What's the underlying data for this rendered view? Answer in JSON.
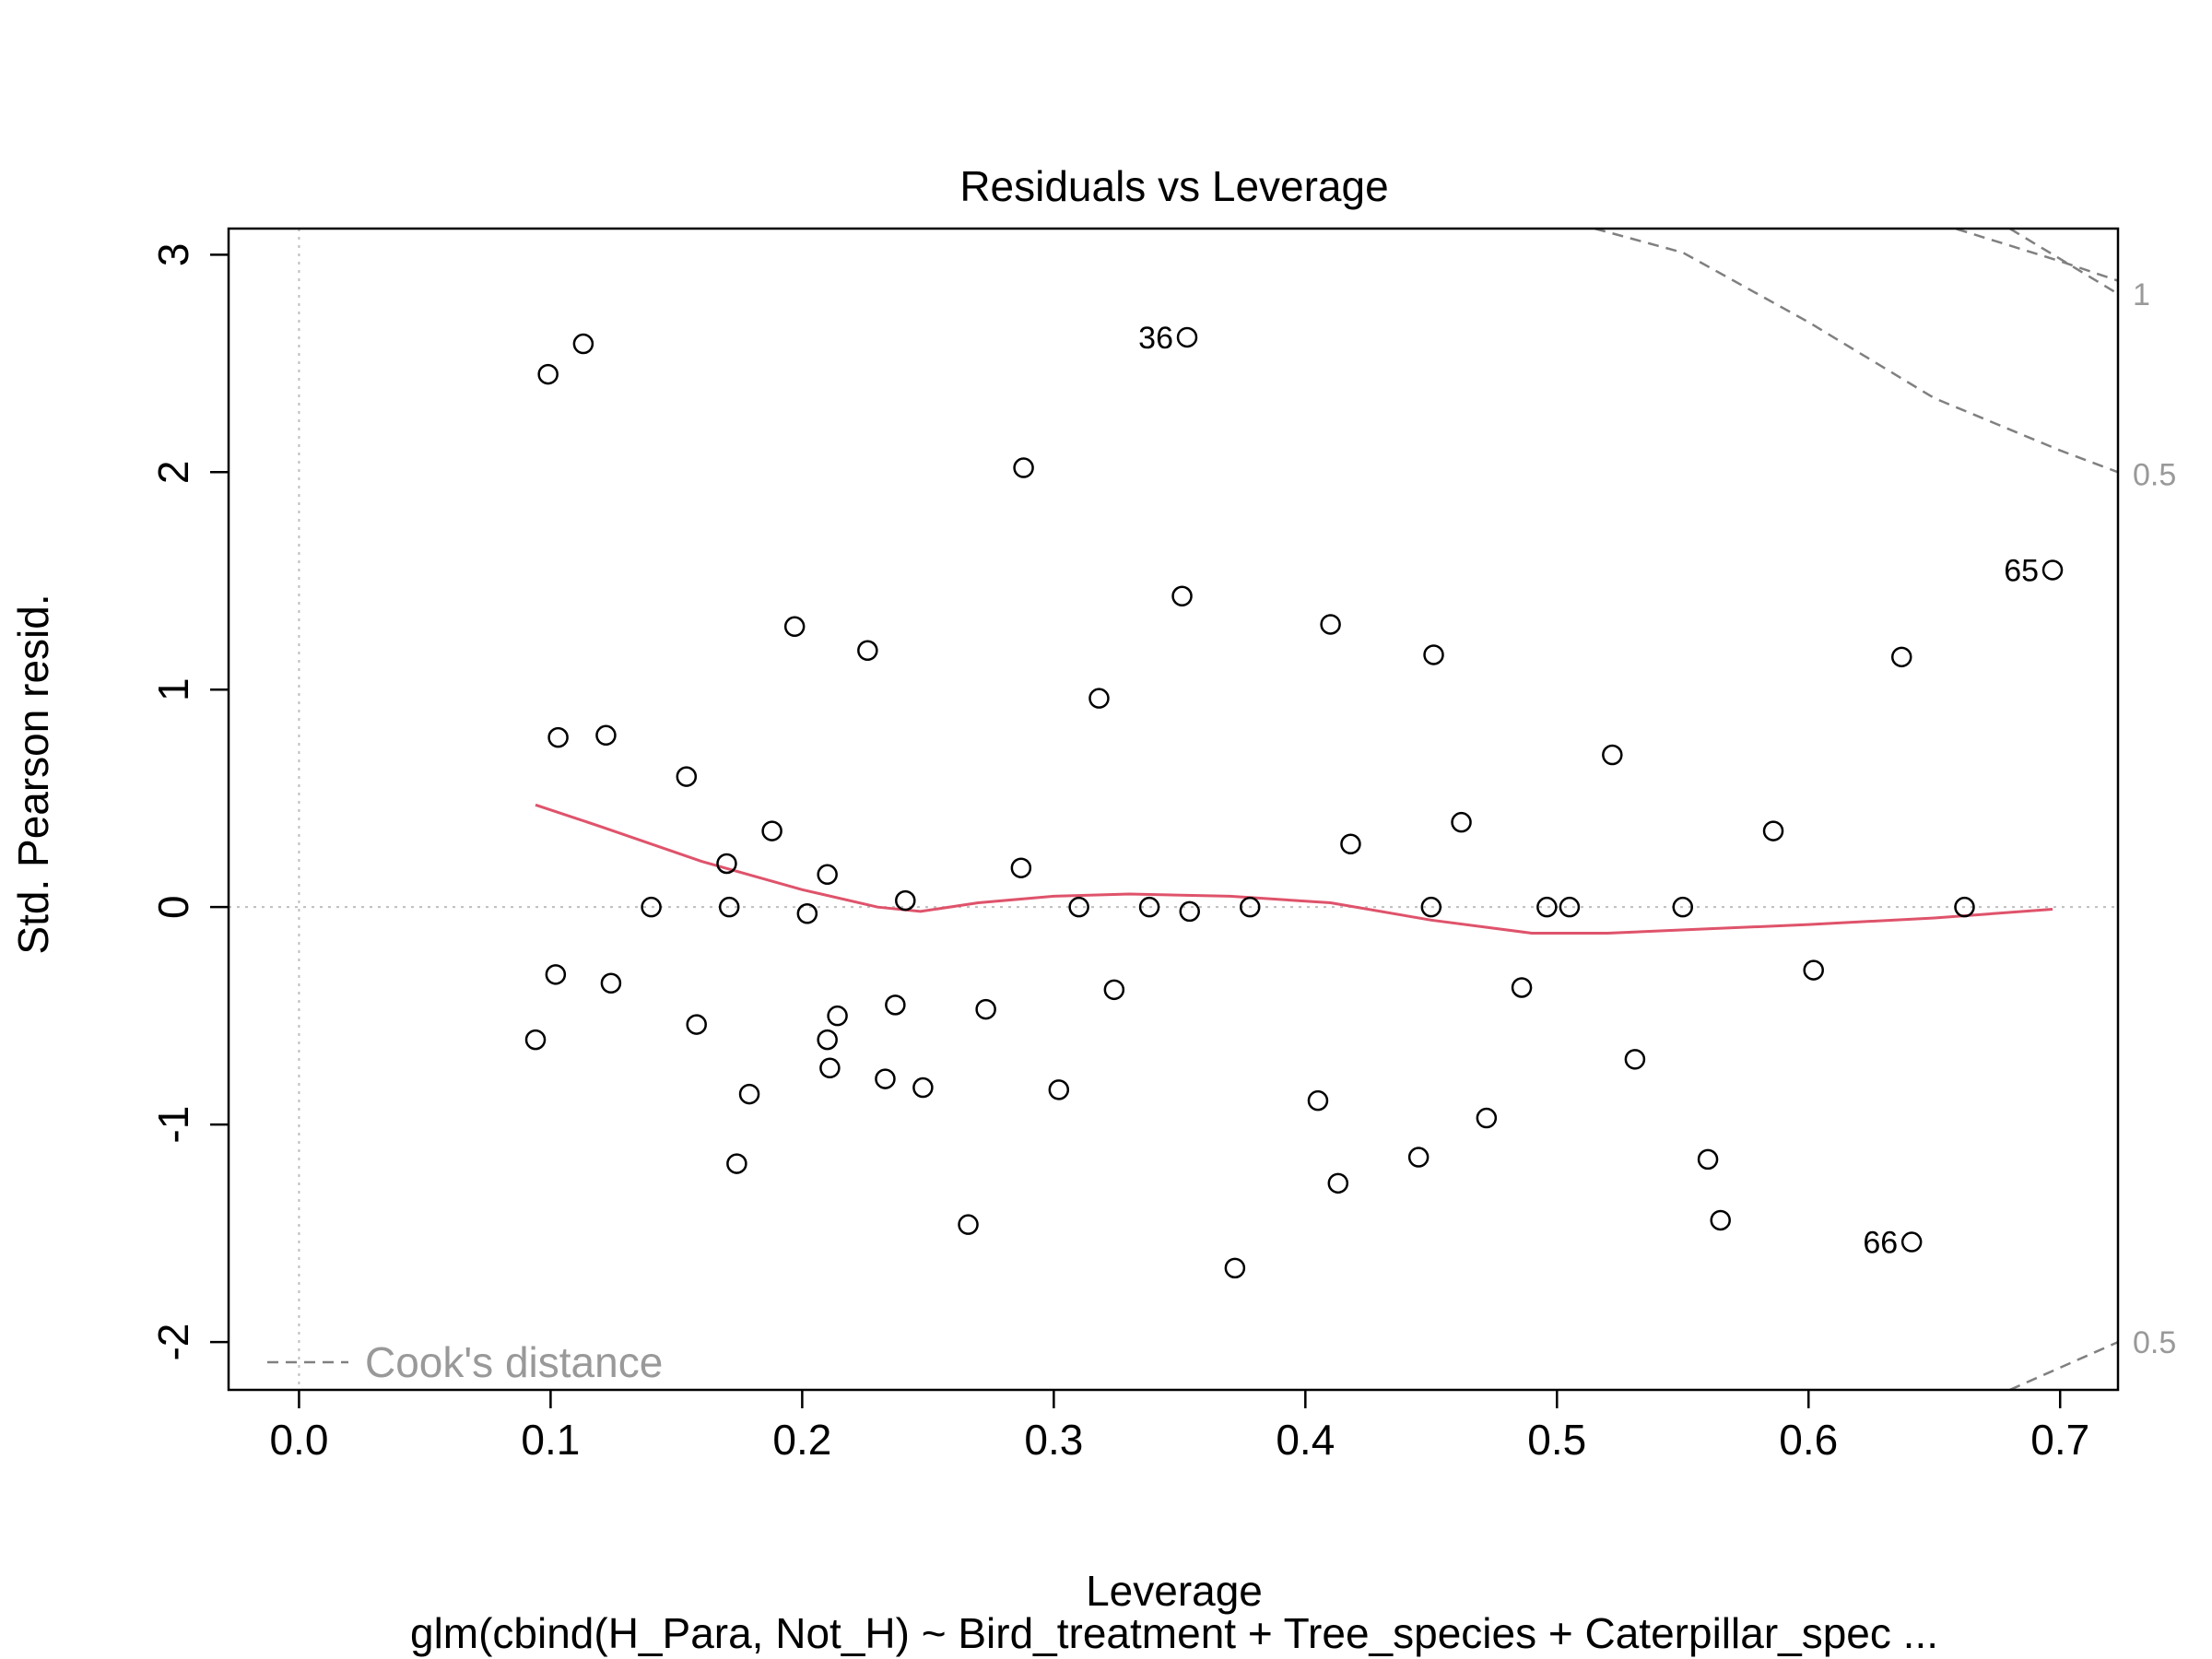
{
  "chart_data": {
    "type": "scatter",
    "title": "Residuals vs Leverage",
    "xlabel": "Leverage",
    "ylabel": "Std. Pearson resid.",
    "subtitle": "glm(cbind(H_Para, Not_H) ~ Bird_treatment + Tree_species + Caterpillar_spec ...",
    "xlim": [
      -0.028,
      0.723
    ],
    "ylim": [
      -2.22,
      3.12
    ],
    "x_ticks": [
      {
        "value": 0.0,
        "label": "0.0"
      },
      {
        "value": 0.1,
        "label": "0.1"
      },
      {
        "value": 0.2,
        "label": "0.2"
      },
      {
        "value": 0.3,
        "label": "0.3"
      },
      {
        "value": 0.4,
        "label": "0.4"
      },
      {
        "value": 0.5,
        "label": "0.5"
      },
      {
        "value": 0.6,
        "label": "0.6"
      },
      {
        "value": 0.7,
        "label": "0.7"
      }
    ],
    "y_ticks": [
      {
        "value": -2,
        "label": "-2"
      },
      {
        "value": -1,
        "label": "-1"
      },
      {
        "value": 0,
        "label": "0"
      },
      {
        "value": 1,
        "label": "1"
      },
      {
        "value": 2,
        "label": "2"
      },
      {
        "value": 3,
        "label": "3"
      }
    ],
    "points": [
      {
        "x": 0.099,
        "y": 2.45
      },
      {
        "x": 0.113,
        "y": 2.59
      },
      {
        "x": 0.353,
        "y": 2.62,
        "label": "36"
      },
      {
        "x": 0.288,
        "y": 2.02
      },
      {
        "x": 0.697,
        "y": 1.55,
        "label": "65"
      },
      {
        "x": 0.351,
        "y": 1.43
      },
      {
        "x": 0.197,
        "y": 1.29
      },
      {
        "x": 0.41,
        "y": 1.3
      },
      {
        "x": 0.226,
        "y": 1.18
      },
      {
        "x": 0.451,
        "y": 1.16
      },
      {
        "x": 0.637,
        "y": 1.15
      },
      {
        "x": 0.318,
        "y": 0.96
      },
      {
        "x": 0.103,
        "y": 0.78
      },
      {
        "x": 0.122,
        "y": 0.79
      },
      {
        "x": 0.522,
        "y": 0.7
      },
      {
        "x": 0.154,
        "y": 0.6
      },
      {
        "x": 0.462,
        "y": 0.39
      },
      {
        "x": 0.188,
        "y": 0.35
      },
      {
        "x": 0.586,
        "y": 0.35
      },
      {
        "x": 0.418,
        "y": 0.29
      },
      {
        "x": 0.17,
        "y": 0.2
      },
      {
        "x": 0.21,
        "y": 0.15
      },
      {
        "x": 0.287,
        "y": 0.18
      },
      {
        "x": 0.241,
        "y": 0.03
      },
      {
        "x": 0.14,
        "y": 0.0
      },
      {
        "x": 0.171,
        "y": 0.0
      },
      {
        "x": 0.202,
        "y": -0.03
      },
      {
        "x": 0.31,
        "y": 0.0
      },
      {
        "x": 0.338,
        "y": 0.0
      },
      {
        "x": 0.354,
        "y": -0.02
      },
      {
        "x": 0.378,
        "y": 0.0
      },
      {
        "x": 0.45,
        "y": 0.0
      },
      {
        "x": 0.496,
        "y": 0.0
      },
      {
        "x": 0.505,
        "y": 0.0
      },
      {
        "x": 0.55,
        "y": 0.0
      },
      {
        "x": 0.662,
        "y": 0.0
      },
      {
        "x": 0.602,
        "y": -0.29
      },
      {
        "x": 0.102,
        "y": -0.31
      },
      {
        "x": 0.124,
        "y": -0.35
      },
      {
        "x": 0.324,
        "y": -0.38
      },
      {
        "x": 0.486,
        "y": -0.37
      },
      {
        "x": 0.237,
        "y": -0.45
      },
      {
        "x": 0.273,
        "y": -0.47
      },
      {
        "x": 0.214,
        "y": -0.5
      },
      {
        "x": 0.158,
        "y": -0.54
      },
      {
        "x": 0.094,
        "y": -0.61
      },
      {
        "x": 0.21,
        "y": -0.61
      },
      {
        "x": 0.531,
        "y": -0.7
      },
      {
        "x": 0.211,
        "y": -0.74
      },
      {
        "x": 0.233,
        "y": -0.79
      },
      {
        "x": 0.248,
        "y": -0.83
      },
      {
        "x": 0.302,
        "y": -0.84
      },
      {
        "x": 0.179,
        "y": -0.86
      },
      {
        "x": 0.405,
        "y": -0.89
      },
      {
        "x": 0.472,
        "y": -0.97
      },
      {
        "x": 0.445,
        "y": -1.15
      },
      {
        "x": 0.56,
        "y": -1.16
      },
      {
        "x": 0.174,
        "y": -1.18
      },
      {
        "x": 0.413,
        "y": -1.27
      },
      {
        "x": 0.565,
        "y": -1.44
      },
      {
        "x": 0.266,
        "y": -1.46
      },
      {
        "x": 0.641,
        "y": -1.54,
        "label": "66"
      },
      {
        "x": 0.372,
        "y": -1.66
      }
    ],
    "smooth_line": {
      "color": "#DF536B",
      "x": [
        0.094,
        0.12,
        0.16,
        0.2,
        0.23,
        0.247,
        0.27,
        0.3,
        0.33,
        0.37,
        0.41,
        0.45,
        0.49,
        0.52,
        0.56,
        0.6,
        0.65,
        0.697
      ],
      "y": [
        0.47,
        0.37,
        0.21,
        0.08,
        0.0,
        -0.02,
        0.02,
        0.05,
        0.06,
        0.05,
        0.02,
        -0.06,
        -0.12,
        -0.12,
        -0.1,
        -0.08,
        -0.05,
        -0.01
      ]
    },
    "cooks_contours": [
      {
        "label": "1",
        "x": [
          0.515,
          0.55,
          0.6,
          0.65,
          0.7,
          0.723
        ],
        "y": [
          3.75,
          3.58,
          3.36,
          3.15,
          2.97,
          2.88
        ]
      },
      {
        "label": "0.5",
        "x": [
          0.515,
          0.55,
          0.6,
          0.65,
          0.7,
          0.723
        ],
        "y": [
          3.12,
          3.01,
          2.69,
          2.34,
          2.1,
          2.0
        ]
      },
      {
        "label": "1",
        "x": [
          0.68,
          0.723
        ],
        "y": [
          3.12,
          2.82
        ]
      },
      {
        "label": "0.5",
        "x": [
          0.68,
          0.723
        ],
        "y": [
          -2.22,
          -2.0
        ]
      }
    ],
    "contour_labels": [
      {
        "label": "1",
        "y": 2.82
      },
      {
        "label": "0.5",
        "y": 1.99
      },
      {
        "label": "0.5",
        "y": -2.0
      }
    ],
    "reference_lines": {
      "h": 0,
      "v": 0
    },
    "legend": {
      "label": "Cook's distance",
      "position": "bottom-left"
    },
    "colors": {
      "points": "#000000",
      "smooth": "#DF536B",
      "contours": "#808080",
      "reference": "#BEBEBE",
      "grey_text": "#999999"
    }
  }
}
